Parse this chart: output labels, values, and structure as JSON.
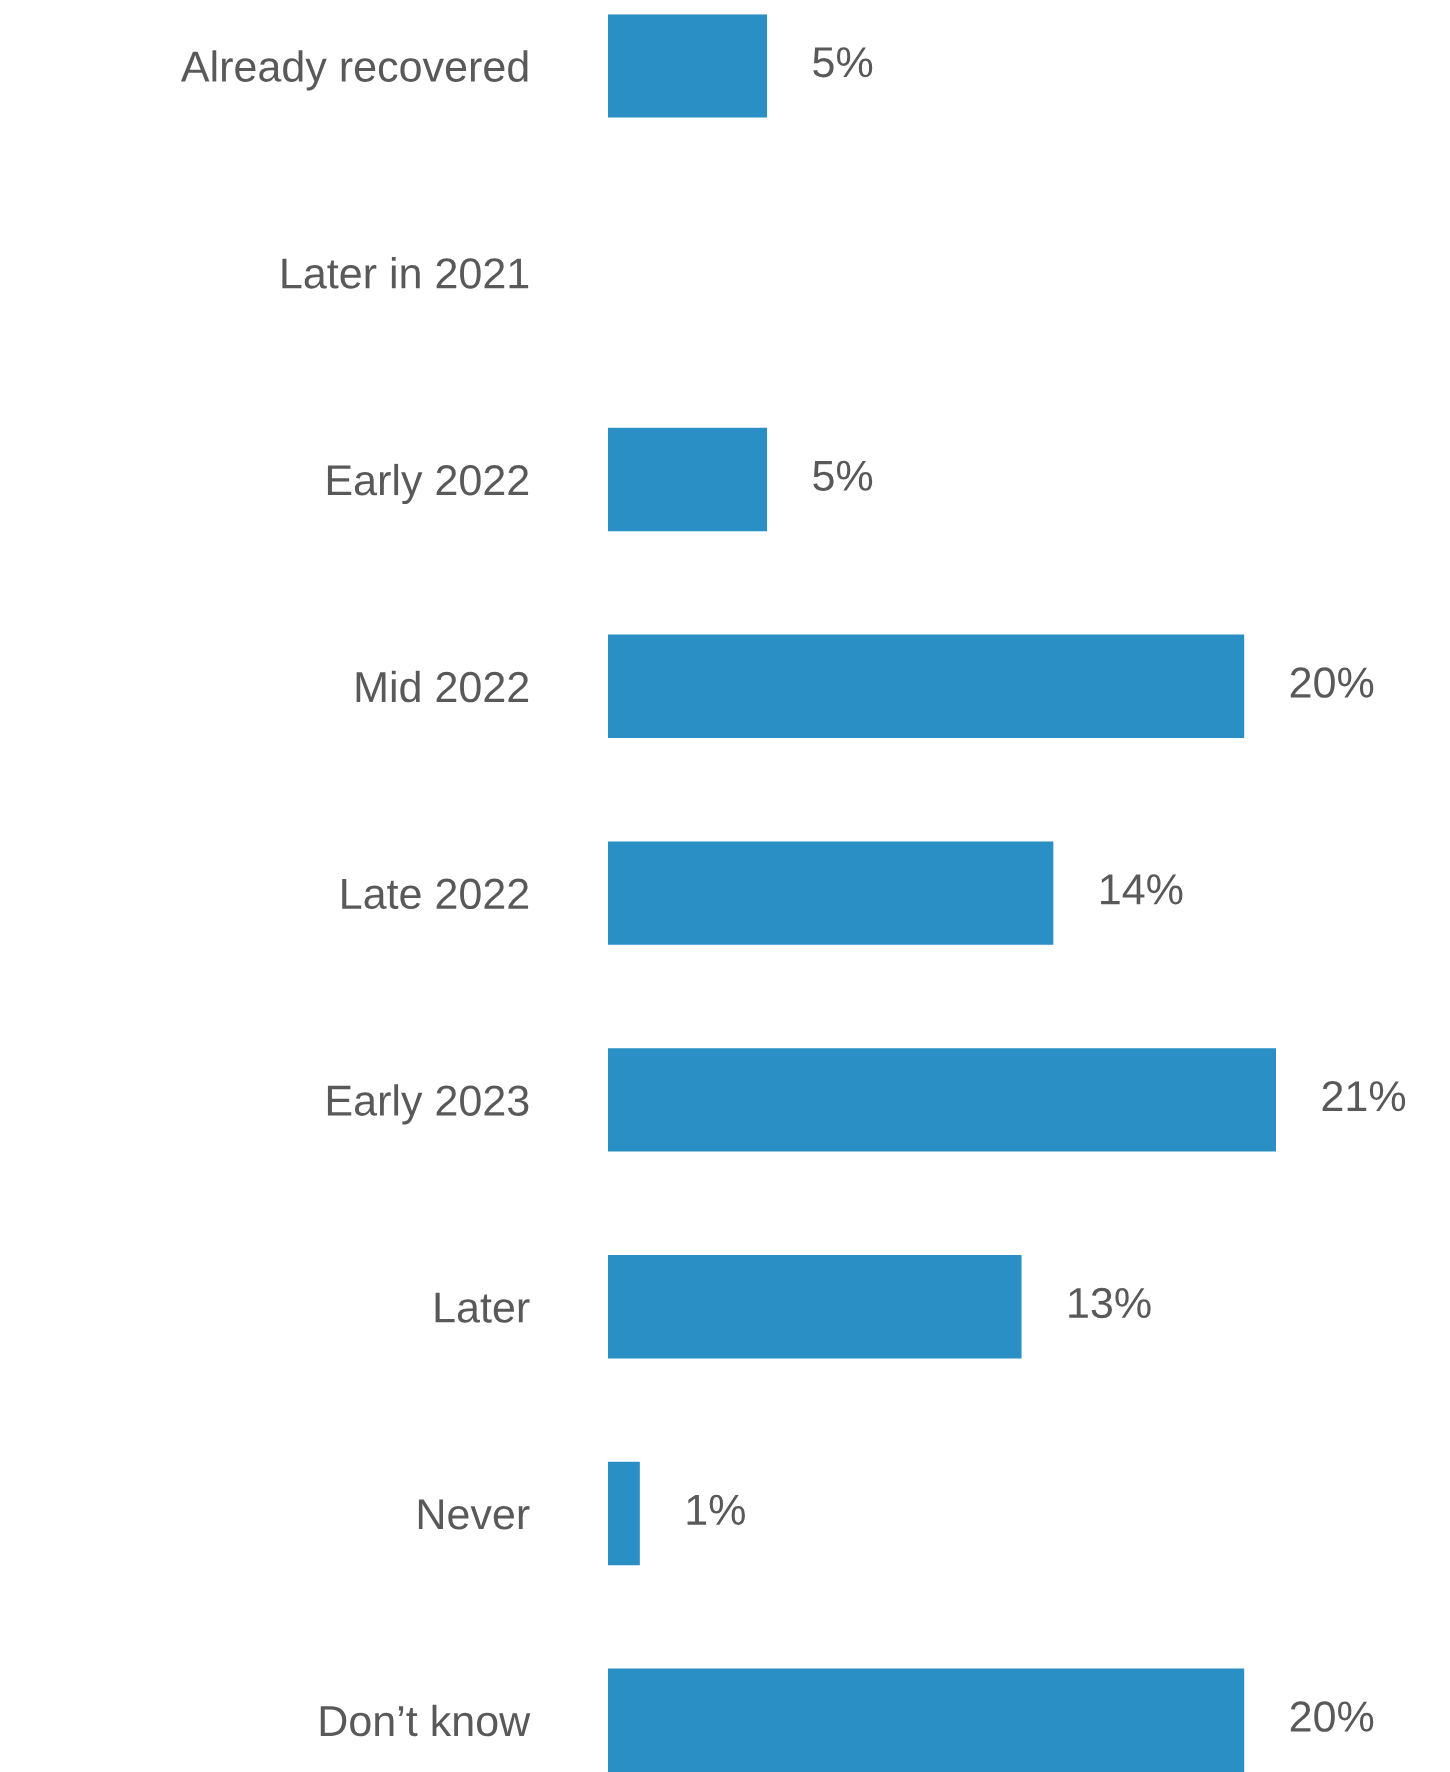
{
  "chart_data": {
    "type": "bar",
    "orientation": "horizontal",
    "categories": [
      "Already recovered",
      "Later in 2021",
      "Early 2022",
      "Mid 2022",
      "Late 2022",
      "Early 2023",
      "Later",
      "Never",
      "Don’t know"
    ],
    "values": [
      5,
      0,
      5,
      20,
      14,
      21,
      13,
      1,
      20
    ],
    "value_labels": [
      "5%",
      null,
      "5%",
      "20%",
      "14%",
      "21%",
      "13%",
      "1%",
      "20%"
    ],
    "color": "#2a8fc4",
    "grid": false,
    "legend": false,
    "tick_labels": "y"
  }
}
